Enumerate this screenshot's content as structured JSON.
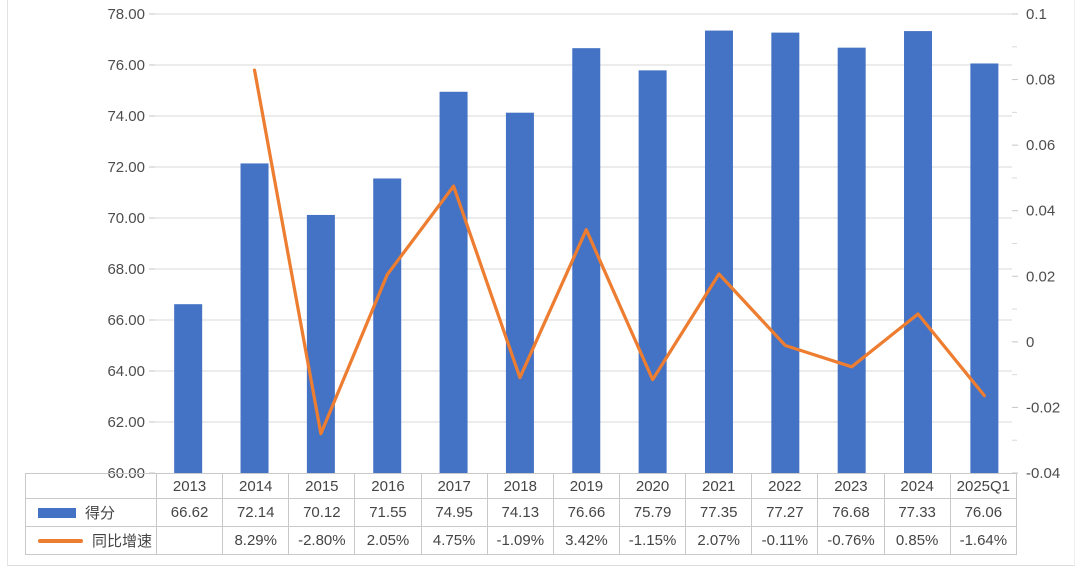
{
  "chart_data": {
    "type": "combo-bar-line",
    "categories": [
      "2013",
      "2014",
      "2015",
      "2016",
      "2017",
      "2018",
      "2019",
      "2020",
      "2021",
      "2022",
      "2023",
      "2024",
      "2025Q1"
    ],
    "series": [
      {
        "name": "得分",
        "chart": "bar",
        "axis": "left",
        "color": "#4472C4",
        "values": [
          66.62,
          72.14,
          70.12,
          71.55,
          74.95,
          74.13,
          76.66,
          75.79,
          77.35,
          77.27,
          76.68,
          77.33,
          76.06
        ],
        "labels": [
          "66.62",
          "72.14",
          "70.12",
          "71.55",
          "74.95",
          "74.13",
          "76.66",
          "75.79",
          "77.35",
          "77.27",
          "76.68",
          "77.33",
          "76.06"
        ]
      },
      {
        "name": "同比增速",
        "chart": "line",
        "axis": "right",
        "color": "#ED7D31",
        "values": [
          null,
          0.0829,
          -0.028,
          0.0205,
          0.0475,
          -0.0109,
          0.0342,
          -0.0115,
          0.0207,
          -0.0011,
          -0.0076,
          0.0085,
          -0.0164
        ],
        "labels": [
          "",
          "8.29%",
          "-2.80%",
          "2.05%",
          "4.75%",
          "-1.09%",
          "3.42%",
          "-1.15%",
          "2.07%",
          "-0.11%",
          "-0.76%",
          "0.85%",
          "-1.64%"
        ]
      }
    ],
    "left_axis": {
      "min": 60,
      "max": 78,
      "step": 2,
      "tick_labels": [
        "78.00",
        "76.00",
        "74.00",
        "72.00",
        "70.00",
        "68.00",
        "66.00",
        "64.00",
        "62.00",
        "60.00"
      ]
    },
    "right_axis": {
      "min": -0.04,
      "max": 0.1,
      "step": 0.02,
      "minor_step": 0.01,
      "tick_labels": [
        "0.1",
        "0.08",
        "0.06",
        "0.04",
        "0.02",
        "0",
        "-0.02",
        "-0.04"
      ]
    },
    "grid": true,
    "legend_position": "table-left",
    "data_table_shown": true
  },
  "style": {
    "background": "#FFFFFF",
    "gridline": "#D9D9D9",
    "tick": "#C6C6C6",
    "axis_text": "#4D4D4D",
    "table_border": "#C9C9C9",
    "table_text": "#454545"
  }
}
